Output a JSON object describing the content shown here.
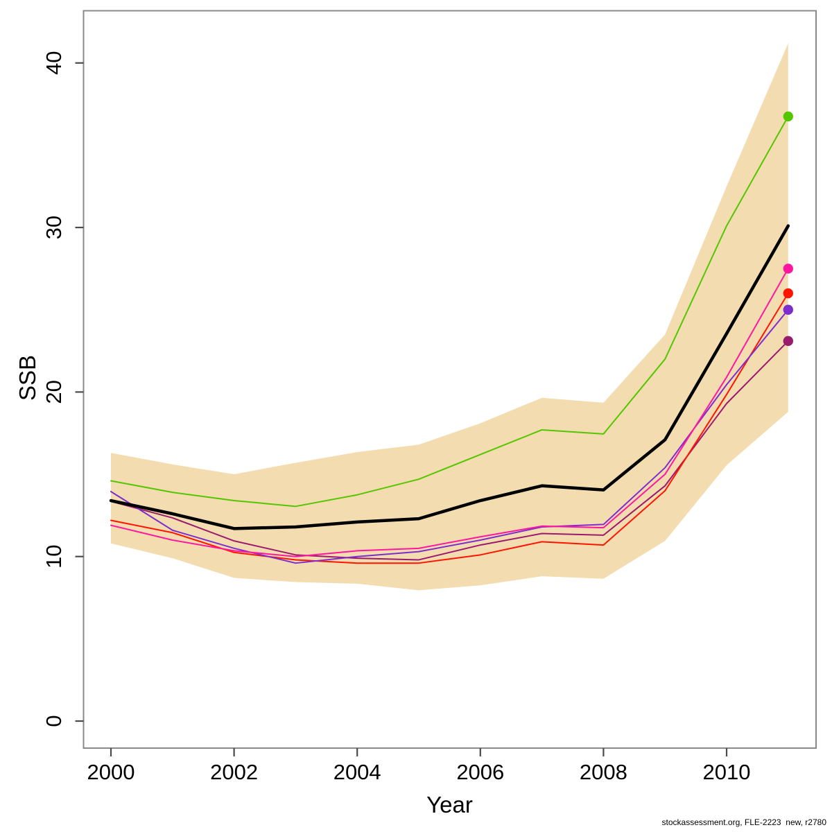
{
  "figure": {
    "x_label": "Year",
    "y_label": "SSB",
    "footer": "stockassessment.org, FLE-2223  new, r2780"
  },
  "chart_data": {
    "type": "line",
    "title": "",
    "xlabel": "Year",
    "ylabel": "SSB",
    "grid": false,
    "legend": null,
    "xlim": [
      1999.55,
      2011.45
    ],
    "ylim": [
      -1.6,
      43.2
    ],
    "x_ticks": [
      2000,
      2002,
      2004,
      2006,
      2008,
      2010
    ],
    "y_ticks": [
      0,
      10,
      20,
      30,
      40
    ],
    "x": [
      2000,
      2001,
      2002,
      2003,
      2004,
      2005,
      2006,
      2007,
      2008,
      2009,
      2010,
      2011
    ],
    "band": {
      "name": "confidence-band",
      "color": "#F3DCB0",
      "upper": [
        16.3,
        15.6,
        15.0,
        15.7,
        16.35,
        16.8,
        18.1,
        19.65,
        19.35,
        23.5,
        32.5,
        41.2
      ],
      "lower": [
        10.8,
        9.9,
        8.7,
        8.45,
        8.35,
        7.95,
        8.25,
        8.8,
        8.65,
        10.95,
        15.55,
        18.8
      ]
    },
    "series": [
      {
        "name": "retro-run-darkmagenta",
        "color": "#9A1B6C",
        "width": 2,
        "end_dot": true,
        "values": [
          13.35,
          12.35,
          10.95,
          10.1,
          9.9,
          9.8,
          10.7,
          11.4,
          11.3,
          14.3,
          19.3,
          23.1
        ]
      },
      {
        "name": "retro-run-red",
        "color": "#FF1400",
        "width": 2,
        "end_dot": true,
        "values": [
          12.2,
          11.45,
          10.25,
          9.8,
          9.6,
          9.6,
          10.1,
          10.9,
          10.7,
          14.0,
          19.85,
          26.0
        ]
      },
      {
        "name": "retro-run-purple",
        "color": "#7D2CCD",
        "width": 2,
        "end_dot": true,
        "values": [
          13.95,
          11.6,
          10.5,
          9.6,
          10.0,
          10.3,
          11.0,
          11.8,
          11.95,
          15.4,
          20.45,
          25.0
        ]
      },
      {
        "name": "retro-run-magenta",
        "color": "#FF17A0",
        "width": 2,
        "end_dot": true,
        "values": [
          11.9,
          11.0,
          10.35,
          10.0,
          10.35,
          10.5,
          11.2,
          11.85,
          11.75,
          15.0,
          20.9,
          27.5
        ]
      },
      {
        "name": "retro-run-green",
        "color": "#53C600",
        "width": 2,
        "end_dot": true,
        "values": [
          14.6,
          13.9,
          13.4,
          13.05,
          13.75,
          14.7,
          16.2,
          17.7,
          17.45,
          22.0,
          30.1,
          36.75
        ]
      },
      {
        "name": "median-ssb-black",
        "color": "#000000",
        "width": 4.5,
        "end_dot": false,
        "values": [
          13.4,
          12.6,
          11.7,
          11.8,
          12.1,
          12.3,
          13.4,
          14.3,
          14.05,
          17.1,
          23.55,
          30.1
        ]
      }
    ]
  }
}
